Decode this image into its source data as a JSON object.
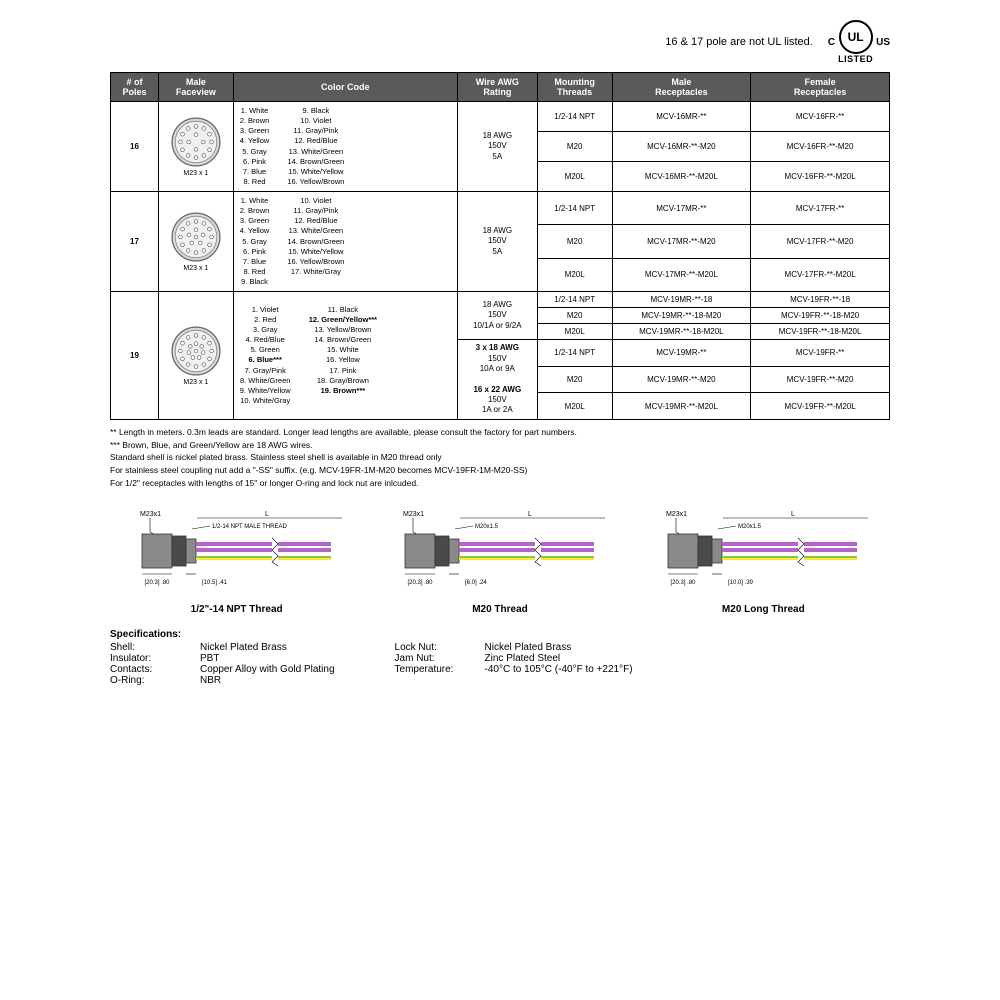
{
  "header": {
    "note": "16 & 17 pole are not UL listed.",
    "ul_c": "C",
    "ul_us": "US",
    "ul_listed": "LISTED"
  },
  "columns": [
    "# of\nPoles",
    "Male\nFaceview",
    "Color Code",
    "Wire AWG\nRating",
    "Mounting\nThreads",
    "Male\nReceptacles",
    "Female\nReceptacles"
  ],
  "col_widths": [
    "45px",
    "70px",
    "210px",
    "75px",
    "70px",
    "130px",
    "130px"
  ],
  "rows16": {
    "poles": "16",
    "conn_label": "M23 x 1",
    "colors_left": [
      "1. White",
      "2. Brown",
      "3. Green",
      "4. Yellow",
      "5. Gray",
      "6. Pink",
      "7. Blue",
      "8. Red"
    ],
    "colors_right": [
      "9. Black",
      "10. Violet",
      "11. Gray/Pink",
      "12. Red/Blue",
      "13. White/Green",
      "14. Brown/Green",
      "15. White/Yellow",
      "16. Yellow/Brown"
    ],
    "rating": "18 AWG\n150V\n5A",
    "threads": [
      "1/2-14 NPT",
      "M20",
      "M20L"
    ],
    "male": [
      "MCV-16MR-**",
      "MCV-16MR-**-M20",
      "MCV-16MR-**-M20L"
    ],
    "female": [
      "MCV-16FR-**",
      "MCV-16FR-**-M20",
      "MCV-16FR-**-M20L"
    ]
  },
  "rows17": {
    "poles": "17",
    "conn_label": "M23 x 1",
    "colors_left": [
      "1. White",
      "2. Brown",
      "3. Green",
      "4. Yellow",
      "5. Gray",
      "6. Pink",
      "7. Blue",
      "8. Red",
      "9. Black"
    ],
    "colors_right": [
      "10. Violet",
      "11. Gray/Pink",
      "12. Red/Blue",
      "13. White/Green",
      "14. Brown/Green",
      "15. White/Yellow",
      "16. Yellow/Brown",
      "17. White/Gray"
    ],
    "rating": "18 AWG\n150V\n5A",
    "threads": [
      "1/2-14 NPT",
      "M20",
      "M20L"
    ],
    "male": [
      "MCV-17MR-**",
      "MCV-17MR-**-M20",
      "MCV-17MR-**-M20L"
    ],
    "female": [
      "MCV-17FR-**",
      "MCV-17FR-**-M20",
      "MCV-17FR-**-M20L"
    ]
  },
  "rows19": {
    "poles": "19",
    "conn_label": "M23 x 1",
    "colors_left": [
      "1. Violet",
      "2. Red",
      "3. Gray",
      "4. Red/Blue",
      "5. Green",
      "6. Blue***",
      "7. Gray/Pink",
      "8. White/Green",
      "9. White/Yellow",
      "10. White/Gray"
    ],
    "colors_left_bold": [
      5
    ],
    "colors_right": [
      "11. Black",
      "12. Green/Yellow***",
      "13. Yellow/Brown",
      "14. Brown/Green",
      "15. White",
      "16. Yellow",
      "17. Pink",
      "18. Gray/Brown",
      "19. Brown***"
    ],
    "colors_right_bold": [
      1,
      8
    ],
    "rating_top": "18 AWG\n150V\n10/1A or 9/2A",
    "rating_mid": "3 x 18 AWG",
    "rating_mid2": "150V\n10A or 9A",
    "rating_bot": "16 x 22 AWG",
    "rating_bot2": "150V\n1A or 2A",
    "threads": [
      "1/2-14 NPT",
      "M20",
      "M20L",
      "1/2-14 NPT",
      "M20",
      "M20L"
    ],
    "male": [
      "MCV-19MR-**-18",
      "MCV-19MR-**-18-M20",
      "MCV-19MR-**-18-M20L",
      "MCV-19MR-**",
      "MCV-19MR-**-M20",
      "MCV-19MR-**-M20L"
    ],
    "female": [
      "MCV-19FR-**-18",
      "MCV-19FR-**-18-M20",
      "MCV-19FR-**-18-M20L",
      "MCV-19FR-**",
      "MCV-19FR-**-M20",
      "MCV-19FR-**-M20L"
    ]
  },
  "footnotes": [
    "** Length in meters. 0.3m leads are standard. Longer lead lengths are available, please consult the factory for part numbers.",
    "*** Brown, Blue, and Green/Yellow are 18 AWG wires.",
    "Standard shell is nickel plated brass. Stainless steel shell is available in M20 thread only",
    "For stainless steel coupling nut add a \"-SS\" suffix. (e.g. MCV-19FR-1M-M20 becomes MCV-19FR-1M-M20-SS)",
    "For 1/2\" receptacles with lengths of 15\" or longer O-ring and lock nut are inlcuded."
  ],
  "diagrams": [
    {
      "caption": "1/2\"-14 NPT Thread",
      "thread_label": "1/2-14 NPT\nMALE THREAD",
      "dims_left": "[20.3]\n.80",
      "dims_right": "[10.5]\n.41",
      "top": "M23x1"
    },
    {
      "caption": "M20 Thread",
      "thread_label": "M20x1.5",
      "dims_left": "[20.3]\n.80",
      "dims_right": "[6.0]\n.24",
      "top": "M23x1"
    },
    {
      "caption": "M20 Long Thread",
      "thread_label": "M20x1.5",
      "dims_left": "[20.3]\n.80",
      "dims_right": "[10.0]\n.39",
      "top": "M23x1"
    }
  ],
  "specs": {
    "title": "Specifications:",
    "left": [
      {
        "label": "Shell:",
        "value": "Nickel Plated Brass"
      },
      {
        "label": "Insulator:",
        "value": "PBT"
      },
      {
        "label": "Contacts:",
        "value": "Copper Alloy with Gold Plating"
      },
      {
        "label": "O-Ring:",
        "value": "NBR"
      }
    ],
    "right": [
      {
        "label": "Lock Nut:",
        "value": "Nickel Plated Brass"
      },
      {
        "label": "Jam Nut:",
        "value": "Zinc Plated Steel"
      },
      {
        "label": "Temperature:",
        "value": "-40°C to 105°C (-40°F to +221°F)"
      }
    ]
  },
  "colors": {
    "header_bg": "#5a5a5a",
    "wire_purple": "#b565c9",
    "wire_green": "#8fc63f",
    "wire_yellow": "#f5e93a",
    "connector_gray": "#8a8a8a",
    "connector_dark": "#4a4a4a"
  }
}
